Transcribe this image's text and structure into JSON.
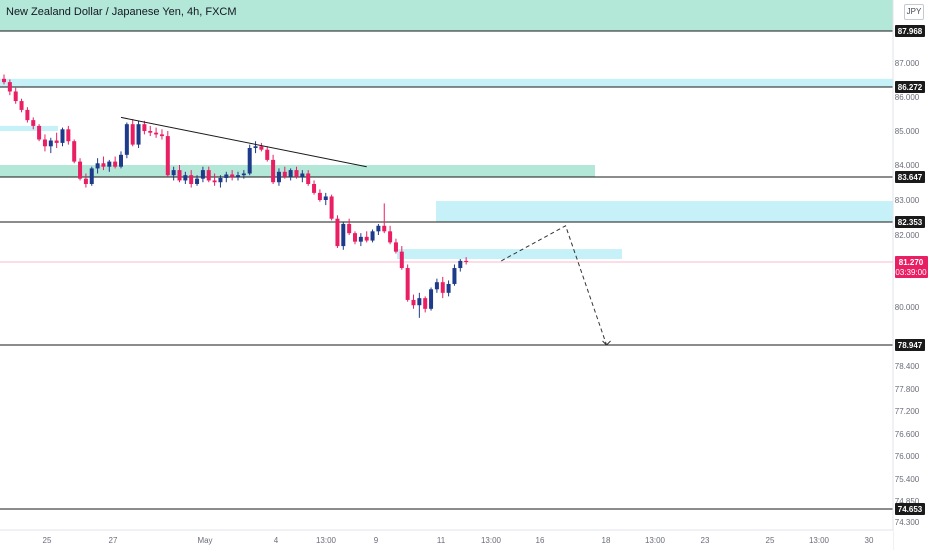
{
  "header": {
    "title": "New Zealand Dollar / Japanese Yen, 4h, FXCM",
    "currency": "JPY"
  },
  "colors": {
    "up": "#1e3a8a",
    "down": "#e91e63",
    "zone_green": "#a6e3d0",
    "zone_cyan": "#bdeef7",
    "level_line": "#1a1a1a",
    "trendline": "#1a1a1a",
    "projection": "#333333",
    "price_marker": "#e91e63"
  },
  "chart_data": {
    "type": "candlestick",
    "title": "New Zealand Dollar / Japanese Yen, 4h, FXCM",
    "y_axis": {
      "ticks": [
        87.0,
        86.0,
        85.0,
        84.0,
        83.0,
        82.0,
        80.0,
        78.4,
        77.8,
        77.2,
        76.6,
        76.0,
        75.4,
        74.85,
        74.3
      ],
      "tick_labels": [
        "87.000",
        "86.000",
        "85.000",
        "84.000",
        "83.000",
        "82.000",
        "80.000",
        "78.400",
        "77.800",
        "77.200",
        "76.600",
        "76.000",
        "75.400",
        "74.850",
        "74.300"
      ]
    },
    "x_axis": {
      "tick_labels": [
        "25",
        "27",
        "May",
        "4",
        "13:00",
        "9",
        "11",
        "13:00",
        "16",
        "18",
        "13:00",
        "23",
        "25",
        "13:00",
        "30"
      ]
    },
    "levels": [
      {
        "value": 87.968,
        "label": "87.968"
      },
      {
        "value": 86.272,
        "label": "86.272"
      },
      {
        "value": 83.647,
        "label": "83.647"
      },
      {
        "value": 82.353,
        "label": "82.353"
      },
      {
        "value": 78.947,
        "label": "78.947"
      },
      {
        "value": 74.653,
        "label": "74.653"
      }
    ],
    "current_price": {
      "value": 81.27,
      "label": "81.270",
      "countdown": "03:39:00"
    },
    "zones": [
      {
        "type": "supply",
        "from": 87.968,
        "to": 88.8
      },
      {
        "type": "supply",
        "from": 86.272,
        "to": 86.52
      },
      {
        "type": "supply",
        "from": 83.647,
        "to": 84.0
      },
      {
        "type": "supply",
        "from": 82.353,
        "to": 82.97
      },
      {
        "type": "demand",
        "from": 81.35,
        "to": 81.62
      },
      {
        "type": "demand",
        "from": 85.0,
        "to": 85.15
      }
    ],
    "candles": [
      {
        "o": 86.52,
        "h": 86.65,
        "l": 86.35,
        "c": 86.42
      },
      {
        "o": 86.42,
        "h": 86.5,
        "l": 86.05,
        "c": 86.15
      },
      {
        "o": 86.15,
        "h": 86.25,
        "l": 85.8,
        "c": 85.88
      },
      {
        "o": 85.88,
        "h": 85.95,
        "l": 85.55,
        "c": 85.62
      },
      {
        "o": 85.62,
        "h": 85.7,
        "l": 85.25,
        "c": 85.32
      },
      {
        "o": 85.32,
        "h": 85.4,
        "l": 85.05,
        "c": 85.15
      },
      {
        "o": 85.15,
        "h": 85.2,
        "l": 84.7,
        "c": 84.75
      },
      {
        "o": 84.75,
        "h": 84.9,
        "l": 84.4,
        "c": 84.55
      },
      {
        "o": 84.55,
        "h": 84.8,
        "l": 84.35,
        "c": 84.72
      },
      {
        "o": 84.72,
        "h": 84.95,
        "l": 84.5,
        "c": 84.65
      },
      {
        "o": 84.65,
        "h": 85.1,
        "l": 84.55,
        "c": 85.05
      },
      {
        "o": 85.05,
        "h": 85.15,
        "l": 84.6,
        "c": 84.7
      },
      {
        "o": 84.7,
        "h": 84.75,
        "l": 84.05,
        "c": 84.1
      },
      {
        "o": 84.1,
        "h": 84.2,
        "l": 83.55,
        "c": 83.6
      },
      {
        "o": 83.6,
        "h": 83.75,
        "l": 83.35,
        "c": 83.45
      },
      {
        "o": 83.45,
        "h": 83.95,
        "l": 83.4,
        "c": 83.9
      },
      {
        "o": 83.9,
        "h": 84.2,
        "l": 83.75,
        "c": 84.05
      },
      {
        "o": 84.05,
        "h": 84.25,
        "l": 83.85,
        "c": 83.95
      },
      {
        "o": 83.95,
        "h": 84.15,
        "l": 83.8,
        "c": 84.1
      },
      {
        "o": 84.1,
        "h": 84.25,
        "l": 83.9,
        "c": 83.95
      },
      {
        "o": 83.95,
        "h": 84.4,
        "l": 83.9,
        "c": 84.3
      },
      {
        "o": 84.3,
        "h": 85.25,
        "l": 84.2,
        "c": 85.2
      },
      {
        "o": 85.2,
        "h": 85.35,
        "l": 84.55,
        "c": 84.6
      },
      {
        "o": 84.6,
        "h": 85.3,
        "l": 84.5,
        "c": 85.2
      },
      {
        "o": 85.2,
        "h": 85.3,
        "l": 84.9,
        "c": 85.0
      },
      {
        "o": 85.0,
        "h": 85.15,
        "l": 84.85,
        "c": 84.95
      },
      {
        "o": 84.95,
        "h": 85.1,
        "l": 84.8,
        "c": 84.9
      },
      {
        "o": 84.9,
        "h": 85.05,
        "l": 84.75,
        "c": 84.85
      },
      {
        "o": 84.85,
        "h": 85.0,
        "l": 83.65,
        "c": 83.7
      },
      {
        "o": 83.7,
        "h": 83.95,
        "l": 83.55,
        "c": 83.85
      },
      {
        "o": 83.85,
        "h": 84.0,
        "l": 83.5,
        "c": 83.55
      },
      {
        "o": 83.55,
        "h": 83.8,
        "l": 83.45,
        "c": 83.7
      },
      {
        "o": 83.7,
        "h": 83.85,
        "l": 83.35,
        "c": 83.45
      },
      {
        "o": 83.45,
        "h": 83.7,
        "l": 83.4,
        "c": 83.6
      },
      {
        "o": 83.6,
        "h": 83.95,
        "l": 83.5,
        "c": 83.85
      },
      {
        "o": 83.85,
        "h": 83.95,
        "l": 83.5,
        "c": 83.55
      },
      {
        "o": 83.55,
        "h": 83.75,
        "l": 83.4,
        "c": 83.5
      },
      {
        "o": 83.5,
        "h": 83.7,
        "l": 83.35,
        "c": 83.62
      },
      {
        "o": 83.62,
        "h": 83.8,
        "l": 83.5,
        "c": 83.72
      },
      {
        "o": 83.72,
        "h": 83.85,
        "l": 83.55,
        "c": 83.65
      },
      {
        "o": 83.65,
        "h": 83.8,
        "l": 83.55,
        "c": 83.7
      },
      {
        "o": 83.7,
        "h": 83.85,
        "l": 83.6,
        "c": 83.75
      },
      {
        "o": 83.75,
        "h": 84.6,
        "l": 83.7,
        "c": 84.5
      },
      {
        "o": 84.5,
        "h": 84.7,
        "l": 84.35,
        "c": 84.55
      },
      {
        "o": 84.55,
        "h": 84.65,
        "l": 84.4,
        "c": 84.45
      },
      {
        "o": 84.45,
        "h": 84.55,
        "l": 84.1,
        "c": 84.15
      },
      {
        "o": 84.15,
        "h": 84.3,
        "l": 83.45,
        "c": 83.5
      },
      {
        "o": 83.5,
        "h": 83.9,
        "l": 83.4,
        "c": 83.8
      },
      {
        "o": 83.8,
        "h": 83.95,
        "l": 83.6,
        "c": 83.65
      },
      {
        "o": 83.65,
        "h": 83.9,
        "l": 83.55,
        "c": 83.85
      },
      {
        "o": 83.85,
        "h": 83.95,
        "l": 83.6,
        "c": 83.65
      },
      {
        "o": 83.65,
        "h": 83.85,
        "l": 83.5,
        "c": 83.75
      },
      {
        "o": 83.75,
        "h": 83.85,
        "l": 83.4,
        "c": 83.45
      },
      {
        "o": 83.45,
        "h": 83.55,
        "l": 83.15,
        "c": 83.2
      },
      {
        "o": 83.2,
        "h": 83.3,
        "l": 82.95,
        "c": 83.0
      },
      {
        "o": 83.0,
        "h": 83.2,
        "l": 82.85,
        "c": 83.1
      },
      {
        "o": 83.1,
        "h": 83.15,
        "l": 82.4,
        "c": 82.45
      },
      {
        "o": 82.45,
        "h": 82.55,
        "l": 81.65,
        "c": 81.7
      },
      {
        "o": 81.7,
        "h": 82.35,
        "l": 81.6,
        "c": 82.3
      },
      {
        "o": 82.3,
        "h": 82.45,
        "l": 82.0,
        "c": 82.05
      },
      {
        "o": 82.05,
        "h": 82.1,
        "l": 81.75,
        "c": 81.82
      },
      {
        "o": 81.82,
        "h": 82.05,
        "l": 81.7,
        "c": 81.95
      },
      {
        "o": 81.95,
        "h": 82.1,
        "l": 81.8,
        "c": 81.85
      },
      {
        "o": 81.85,
        "h": 82.15,
        "l": 81.8,
        "c": 82.1
      },
      {
        "o": 82.1,
        "h": 82.3,
        "l": 82.0,
        "c": 82.25
      },
      {
        "o": 82.25,
        "h": 82.9,
        "l": 82.05,
        "c": 82.1
      },
      {
        "o": 82.1,
        "h": 82.25,
        "l": 81.75,
        "c": 81.8
      },
      {
        "o": 81.8,
        "h": 81.9,
        "l": 81.5,
        "c": 81.55
      },
      {
        "o": 81.55,
        "h": 81.7,
        "l": 81.05,
        "c": 81.1
      },
      {
        "o": 81.1,
        "h": 81.2,
        "l": 80.15,
        "c": 80.2
      },
      {
        "o": 80.2,
        "h": 80.35,
        "l": 79.95,
        "c": 80.05
      },
      {
        "o": 80.05,
        "h": 80.4,
        "l": 79.7,
        "c": 80.25
      },
      {
        "o": 80.25,
        "h": 80.3,
        "l": 79.85,
        "c": 79.95
      },
      {
        "o": 79.95,
        "h": 80.55,
        "l": 79.9,
        "c": 80.5
      },
      {
        "o": 80.5,
        "h": 80.8,
        "l": 80.4,
        "c": 80.7
      },
      {
        "o": 80.7,
        "h": 80.85,
        "l": 80.25,
        "c": 80.4
      },
      {
        "o": 80.4,
        "h": 80.75,
        "l": 80.3,
        "c": 80.65
      },
      {
        "o": 80.65,
        "h": 81.2,
        "l": 80.6,
        "c": 81.1
      },
      {
        "o": 81.1,
        "h": 81.35,
        "l": 81.0,
        "c": 81.3
      },
      {
        "o": 81.3,
        "h": 81.4,
        "l": 81.2,
        "c": 81.27
      }
    ],
    "trendline": {
      "from": {
        "index": 20,
        "price": 85.4
      },
      "to": {
        "index": 62,
        "price": 83.95
      }
    },
    "projection": [
      {
        "index": 85,
        "price": 81.3
      },
      {
        "index": 96,
        "price": 82.25
      },
      {
        "index": 103,
        "price": 78.947
      }
    ]
  }
}
